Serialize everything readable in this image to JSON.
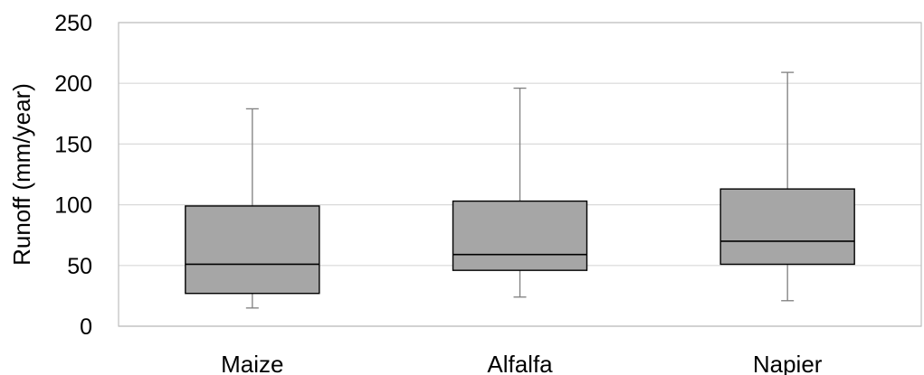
{
  "chart_data": {
    "type": "boxplot",
    "title": "",
    "xlabel": "",
    "ylabel": "Runoff (mm/year)",
    "ylim": [
      0,
      250
    ],
    "yticks": [
      0,
      50,
      100,
      150,
      200,
      250
    ],
    "ytick_labels": [
      "0",
      "50",
      "100",
      "150",
      "200",
      "250"
    ],
    "grid": true,
    "legend": "none",
    "categories": [
      "Maize",
      "Alfalfa",
      "Napier"
    ],
    "boxes": [
      {
        "category": "Maize",
        "min": 15,
        "q1": 27,
        "median": 51,
        "q3": 99,
        "max": 179
      },
      {
        "category": "Alfalfa",
        "min": 24,
        "q1": 46,
        "median": 59,
        "q3": 103,
        "max": 196
      },
      {
        "category": "Napier",
        "min": 21,
        "q1": 51,
        "median": 70,
        "q3": 113,
        "max": 209
      }
    ],
    "colors": {
      "box_fill": "#a6a6a6",
      "box_stroke": "#000000",
      "whisker": "#7f7f7f",
      "grid": "#d9d9d9",
      "plot_border": "#bfbfbf"
    }
  }
}
